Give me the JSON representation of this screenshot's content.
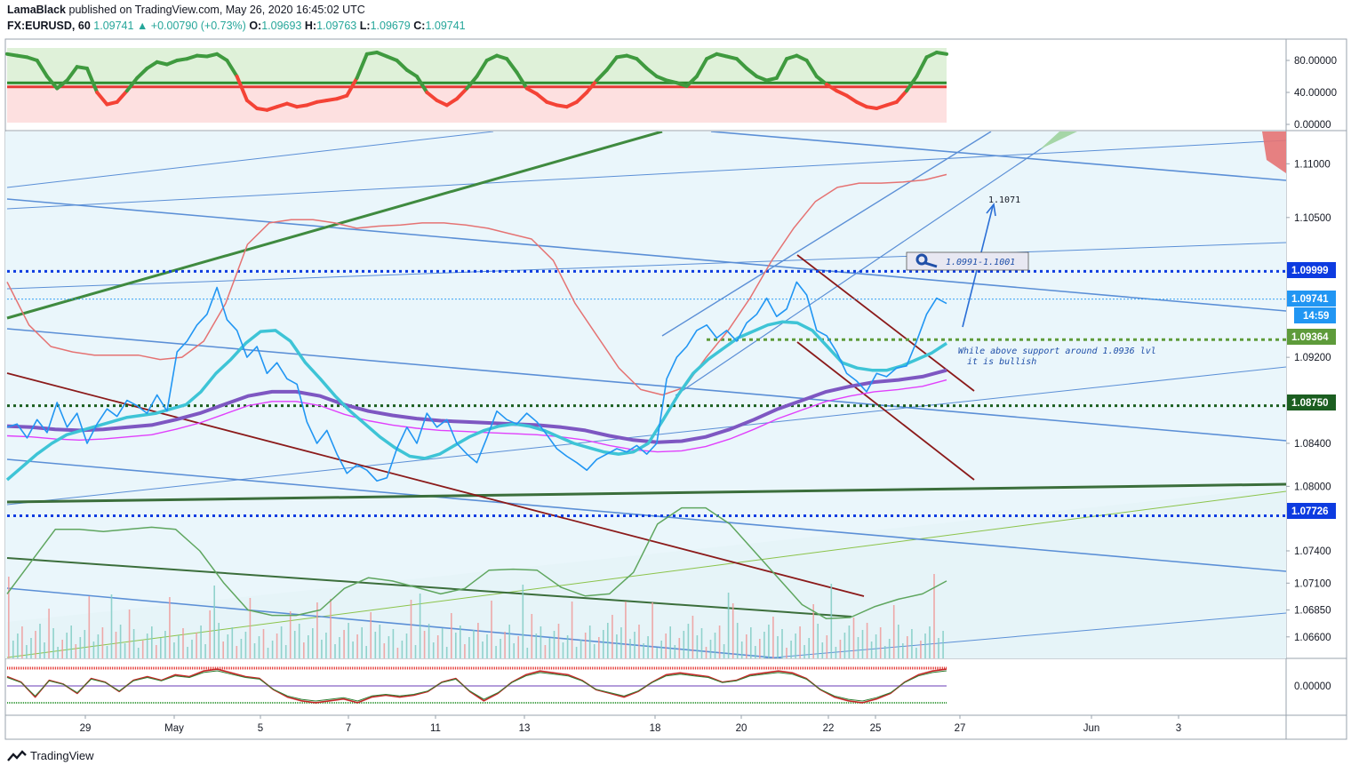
{
  "header": {
    "publisher": "LamaBlack",
    "published_text": "published on TradingView.com, May 26, 2020 16:45:02 UTC",
    "symbol": "FX:EURUSD, 60",
    "last": "1.09741",
    "change": "+0.00790 (+0.73%)",
    "o_label": "O:",
    "o": "1.09693",
    "h_label": "H:",
    "h": "1.09763",
    "l_label": "L:",
    "l": "1.09679",
    "c_label": "C:",
    "c": "1.09741"
  },
  "brand": "TradingView",
  "colors": {
    "pane_bg": "#eaf6fb",
    "price_line": "#2196f3",
    "teal_ma": "#3ec4d6",
    "purple_ma": "#7e57c2",
    "pink_ma": "#e040fb",
    "red_band": "#ef5350",
    "green_osc": "#43a047",
    "level_blue": "#0d3be0",
    "level_green": "#5e9b3a",
    "level_dark": "#1b5e20"
  },
  "chart_data": [
    {
      "type": "line",
      "title": "Oscillator pane",
      "ylabels": [
        "80.00000",
        "40.00000",
        "0.00000"
      ],
      "ylim": [
        0,
        100
      ],
      "levels": [
        52,
        47
      ],
      "series": [
        {
          "name": "oscillator",
          "values": [
            88,
            86,
            84,
            80,
            60,
            45,
            55,
            72,
            70,
            40,
            25,
            28,
            42,
            58,
            70,
            78,
            75,
            80,
            82,
            86,
            85,
            88,
            80,
            60,
            30,
            20,
            18,
            22,
            26,
            22,
            24,
            28,
            30,
            32,
            36,
            58,
            88,
            90,
            85,
            80,
            68,
            60,
            40,
            30,
            24,
            32,
            45,
            60,
            80,
            86,
            82,
            65,
            45,
            38,
            28,
            24,
            22,
            28,
            40,
            55,
            68,
            84,
            86,
            82,
            70,
            60,
            55,
            52,
            48,
            60,
            82,
            88,
            85,
            82,
            70,
            60,
            55,
            58,
            82,
            86,
            80,
            60,
            50,
            42,
            36,
            28,
            22,
            20,
            24,
            28,
            42,
            60,
            84,
            90,
            88
          ]
        }
      ]
    },
    {
      "type": "line",
      "title": "EURUSD 60",
      "ylabels": [
        "1.11000",
        "1.10500",
        "1.09200",
        "1.08400",
        "1.08000",
        "1.07400",
        "1.07100",
        "1.06850",
        "1.06600"
      ],
      "ylim": [
        1.064,
        1.113
      ],
      "x_ticks": [
        "29",
        "May",
        "5",
        "7",
        "11",
        "13",
        "18",
        "20",
        "22",
        "25",
        "27",
        "Jun",
        "3"
      ],
      "series": [
        {
          "name": "EURUSD close",
          "values": [
            1.0855,
            1.0858,
            1.0845,
            1.0862,
            1.085,
            1.0878,
            1.0855,
            1.0868,
            1.084,
            1.0858,
            1.0872,
            1.0865,
            1.088,
            1.0875,
            1.0868,
            1.0885,
            1.087,
            1.0925,
            1.0935,
            1.095,
            1.096,
            1.0985,
            1.0955,
            1.0945,
            1.092,
            1.093,
            1.0905,
            1.0915,
            1.09,
            1.0895,
            1.086,
            1.084,
            1.0852,
            1.083,
            1.0812,
            1.082,
            1.0815,
            1.0805,
            1.0808,
            1.0835,
            1.0855,
            1.084,
            1.0868,
            1.0855,
            1.0862,
            1.084,
            1.083,
            1.0822,
            1.0845,
            1.087,
            1.0862,
            1.0858,
            1.0868,
            1.086,
            1.0848,
            1.0835,
            1.0828,
            1.0822,
            1.0815,
            1.0825,
            1.083,
            1.0835,
            1.0832,
            1.0838,
            1.083,
            1.084,
            1.09,
            1.092,
            1.093,
            1.0945,
            1.095,
            1.0938,
            1.0945,
            1.0935,
            1.0952,
            1.096,
            1.0975,
            1.0958,
            1.0965,
            1.099,
            1.0978,
            1.0945,
            1.094,
            1.0925,
            1.0905,
            1.0898,
            1.0888,
            1.0905,
            1.0902,
            1.091,
            1.0912,
            1.0935,
            1.096,
            1.0975,
            1.097
          ]
        },
        {
          "name": "fast MA",
          "values": [
            1.0806,
            1.0818,
            1.083,
            1.084,
            1.0848,
            1.0852,
            1.0856,
            1.086,
            1.0864,
            1.0866,
            1.0868,
            1.0872,
            1.0876,
            1.0888,
            1.0905,
            1.0918,
            1.0933,
            1.0944,
            1.0945,
            1.0935,
            1.0915,
            1.09,
            1.0884,
            1.087,
            1.0858,
            1.0846,
            1.0836,
            1.0828,
            1.0826,
            1.083,
            1.0838,
            1.0846,
            1.0852,
            1.0856,
            1.0858,
            1.0856,
            1.0852,
            1.0846,
            1.084,
            1.0836,
            1.0832,
            1.083,
            1.0832,
            1.084,
            1.0862,
            1.0885,
            1.0905,
            1.0918,
            1.0928,
            1.0938,
            1.0944,
            1.095,
            1.0953,
            1.0952,
            1.0945,
            1.093,
            1.0915,
            1.091,
            1.0908,
            1.0908,
            1.0912,
            1.0918,
            1.0924,
            1.0933
          ]
        },
        {
          "name": "slow MA",
          "values": [
            1.0856,
            1.0855,
            1.0853,
            1.0852,
            1.0853,
            1.0855,
            1.0857,
            1.0862,
            1.0868,
            1.0876,
            1.0884,
            1.0888,
            1.0888,
            1.0884,
            1.0876,
            1.087,
            1.0866,
            1.0863,
            1.0861,
            1.086,
            1.0859,
            1.0858,
            1.0857,
            1.0855,
            1.0852,
            1.0847,
            1.0843,
            1.0841,
            1.0842,
            1.0846,
            1.0853,
            1.0862,
            1.0872,
            1.088,
            1.0888,
            1.0893,
            1.0897,
            1.0899,
            1.0902,
            1.0908
          ]
        },
        {
          "name": "upper band",
          "values": [
            1.099,
            1.095,
            1.093,
            1.0925,
            1.0922,
            1.0922,
            1.0922,
            1.0918,
            1.092,
            1.0935,
            1.097,
            1.1025,
            1.1045,
            1.1048,
            1.1048,
            1.1045,
            1.104,
            1.1042,
            1.1043,
            1.1045,
            1.1045,
            1.1043,
            1.104,
            1.1035,
            1.103,
            1.101,
            1.097,
            1.094,
            1.091,
            1.089,
            1.0885,
            1.0892,
            1.092,
            1.0945,
            1.0975,
            1.101,
            1.104,
            1.1065,
            1.1078,
            1.1082,
            1.1082,
            1.1083,
            1.1085,
            1.109
          ]
        },
        {
          "name": "volume-profile curve",
          "values": [
            1.07,
            1.073,
            1.076,
            1.076,
            1.0758,
            1.076,
            1.0762,
            1.076,
            1.074,
            1.071,
            1.0685,
            1.068,
            1.068,
            1.0685,
            1.0705,
            1.0715,
            1.0712,
            1.0706,
            1.07,
            1.0705,
            1.0722,
            1.0723,
            1.0722,
            1.0706,
            1.0698,
            1.07,
            1.072,
            1.0765,
            1.078,
            1.078,
            1.0765,
            1.074,
            1.0715,
            1.069,
            1.0677,
            1.0678,
            1.0688,
            1.0695,
            1.07,
            1.0712
          ]
        }
      ]
    },
    {
      "type": "line",
      "title": "Momentum pane",
      "ylabels": [
        "0.00000"
      ],
      "series": [
        {
          "name": "momentum",
          "values": [
            5,
            2,
            -6,
            3,
            1,
            -4,
            4,
            2,
            -3,
            3,
            5,
            3,
            6,
            5,
            8,
            9,
            7,
            5,
            4,
            -2,
            -6,
            -8,
            -9,
            -8,
            -7,
            -9,
            -6,
            -5,
            -6,
            -5,
            -3,
            2,
            4,
            -3,
            -8,
            -4,
            2,
            6,
            8,
            7,
            6,
            3,
            -2,
            -4,
            -6,
            -3,
            2,
            6,
            7,
            6,
            5,
            2,
            3,
            6,
            7,
            8,
            7,
            4,
            -2,
            -6,
            -8,
            -9,
            -7,
            -4,
            2,
            6,
            8,
            9
          ]
        }
      ]
    }
  ],
  "levels": [
    {
      "label": "1.09999"
    },
    {
      "label": "1.09741"
    },
    {
      "label": "1.09364"
    },
    {
      "label": "1.08750"
    },
    {
      "label": "1.07726"
    }
  ],
  "countdown": "14:59",
  "annotations": {
    "target": "1.1071",
    "zone": "1.0991-1.1001",
    "note_line1": "While above support around 1.0936 lvl",
    "note_line2": "it is bullish"
  }
}
